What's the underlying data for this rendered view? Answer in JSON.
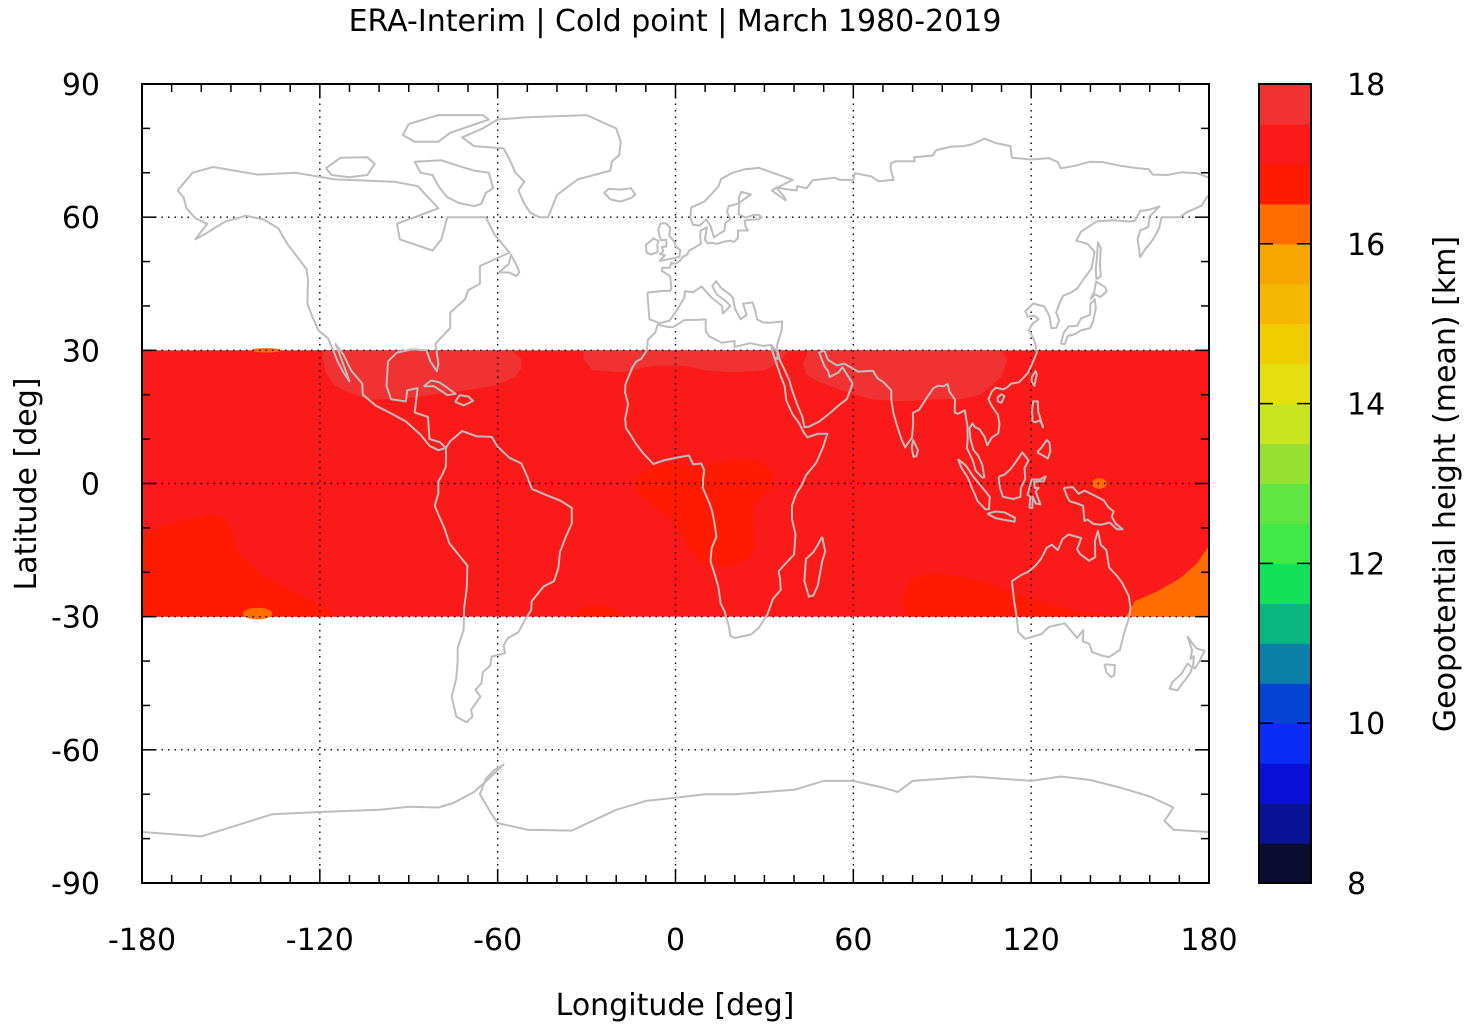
{
  "chart_data": {
    "type": "heatmap",
    "title": "ERA-Interim | Cold point | March 1980-2019",
    "xlabel": "Longitude [deg]",
    "ylabel": "Latitude [deg]",
    "xlim": [
      -180,
      180
    ],
    "ylim": [
      -90,
      90
    ],
    "x_ticks": [
      "-180",
      "-120",
      "-60",
      "0",
      "60",
      "120",
      "180"
    ],
    "y_ticks": [
      "90",
      "60",
      "30",
      "0",
      "-30",
      "-60",
      "-90"
    ],
    "data_extent_lat": [
      -30,
      30
    ],
    "grid": true,
    "colorbar": {
      "label": "Geopotential height (mean) [km]",
      "range": [
        8,
        18
      ],
      "ticks": [
        "8",
        "10",
        "12",
        "14",
        "16",
        "18"
      ],
      "levels": [
        8,
        8.5,
        9,
        9.5,
        10,
        10.5,
        11,
        11.5,
        12,
        12.5,
        13,
        13.5,
        14,
        14.5,
        15,
        15.5,
        16,
        16.5,
        17,
        17.5,
        18
      ],
      "colors": [
        "#0b0d30",
        "#0a1396",
        "#0a10d8",
        "#0a2cf5",
        "#0344d2",
        "#0a80a8",
        "#0ab680",
        "#15e05a",
        "#40e848",
        "#60e640",
        "#95e030",
        "#c8e520",
        "#e6df10",
        "#f0cd00",
        "#f5b800",
        "#f7a600",
        "#ff6c00",
        "#ff1a00",
        "#fa1a1a",
        "#f03232",
        "#f57878",
        "#fdcaca"
      ]
    },
    "field_regions": [
      {
        "range_km": [
          17.0,
          17.5
        ],
        "description": "background tropical field"
      },
      {
        "range_km": [
          17.5,
          18.0
        ],
        "description": "North America / Gulf of Mexico"
      },
      {
        "range_km": [
          17.5,
          18.0
        ],
        "description": "Sahara"
      },
      {
        "range_km": [
          17.5,
          18.0
        ],
        "description": "Tibetan Plateau / South Asia"
      },
      {
        "range_km": [
          16.5,
          17.0
        ],
        "description": "Equatorial Africa"
      },
      {
        "range_km": [
          16.5,
          17.0
        ],
        "description": "Southeast Pacific"
      },
      {
        "range_km": [
          16.5,
          17.0
        ],
        "description": "South Indian Ocean / Australia"
      },
      {
        "range_km": [
          16.5,
          17.0
        ],
        "description": "Southwest Pacific"
      },
      {
        "range_km": [
          16.0,
          16.5
        ],
        "description": "isolated spots"
      }
    ]
  },
  "colors": {
    "background_field": "#f57878",
    "high": "#fdcaca",
    "low": "#f03232",
    "lowest": "#fa1a1a",
    "coastline": "#bdbdbd"
  }
}
